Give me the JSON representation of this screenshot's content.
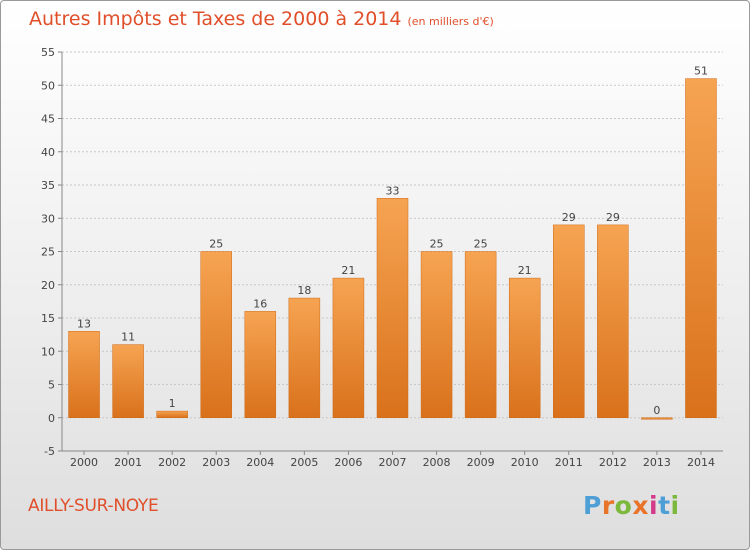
{
  "header": {
    "title": "Autres Impôts et Taxes de 2000 à 2014",
    "subtitle": "(en milliers d'€)"
  },
  "footer": {
    "place": "AILLY-SUR-NOYE",
    "brand": "Proxiti"
  },
  "colors": {
    "bar_light": "#f6a452",
    "bar_dark": "#d9711b",
    "title": "#e04f2a",
    "brand_letters": [
      "#4e9fd6",
      "#e8742a",
      "#7bb83c",
      "#e8742a",
      "#d43a8a",
      "#4e9fd6",
      "#7bb83c"
    ]
  },
  "chart_data": {
    "type": "bar",
    "title": "Autres Impôts et Taxes de 2000 à 2014",
    "subtitle": "(en milliers d'€)",
    "xlabel": "",
    "ylabel": "",
    "categories": [
      "2000",
      "2001",
      "2002",
      "2003",
      "2004",
      "2005",
      "2006",
      "2007",
      "2008",
      "2009",
      "2010",
      "2011",
      "2012",
      "2013",
      "2014"
    ],
    "values": [
      13,
      11,
      1,
      25,
      16,
      18,
      21,
      33,
      25,
      25,
      21,
      29,
      29,
      0,
      51
    ],
    "ylim": [
      -5,
      55
    ],
    "yticks": [
      -5,
      0,
      5,
      10,
      15,
      20,
      25,
      30,
      35,
      40,
      45,
      50,
      55
    ],
    "grid": true,
    "legend": "none"
  }
}
